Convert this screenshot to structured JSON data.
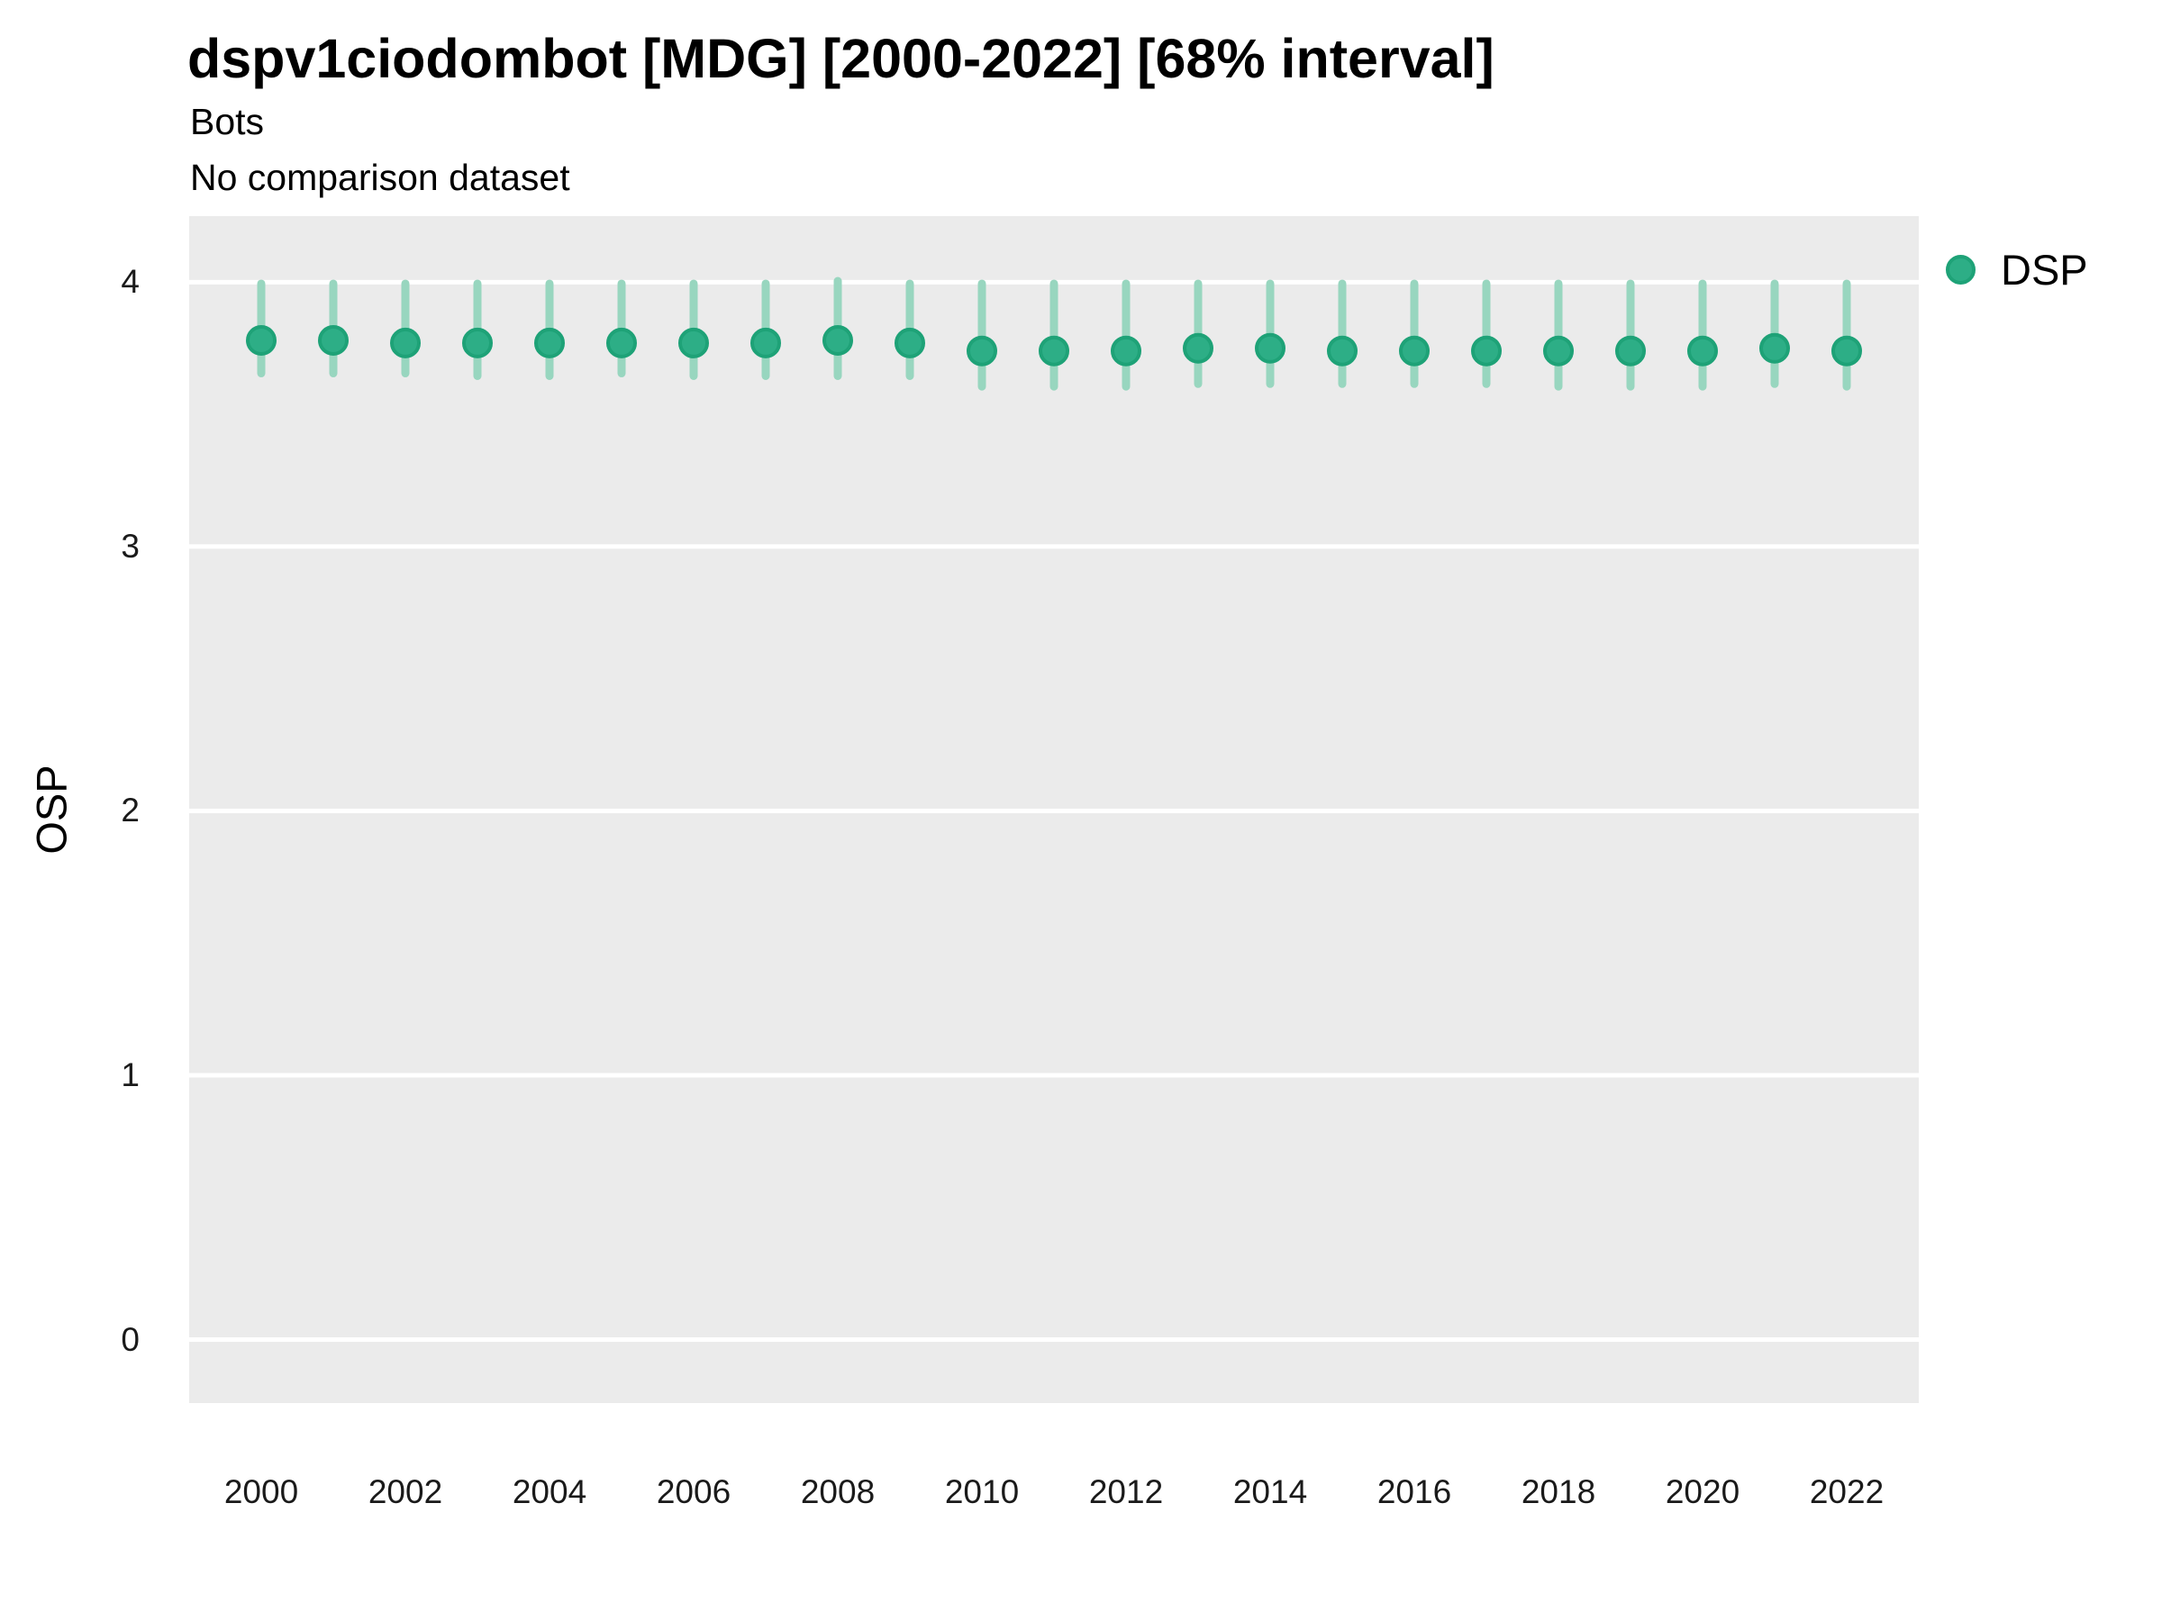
{
  "header": {
    "title": "dspv1ciodombot [MDG] [2000-2022] [68% interval]",
    "subtitle": "Bots",
    "note": "No comparison dataset"
  },
  "legend": {
    "label": "DSP"
  },
  "colors": {
    "point_fill": "#2DAE86",
    "point_stroke": "#1EA277",
    "interval_bar": "#98D6BF",
    "panel_background": "#EBEBEB",
    "gridline": "#FFFFFF",
    "title_text": "#000000",
    "tick_text": "#1A1A1A"
  },
  "chart_data": {
    "type": "scatter",
    "title": "dspv1ciodombot [MDG] [2000-2022] [68% interval]",
    "subtitle": "Bots",
    "note": "No comparison dataset",
    "interval_level": "68%",
    "xlabel": "",
    "ylabel": "OSP",
    "legend": {
      "label": "DSP",
      "position": "right"
    },
    "grid": "major-horizontal-only",
    "x_ticks": [
      2000,
      2002,
      2004,
      2006,
      2008,
      2010,
      2012,
      2014,
      2016,
      2018,
      2020,
      2022
    ],
    "y_ticks": [
      0,
      1,
      2,
      3,
      4
    ],
    "xlim": [
      1999,
      2023
    ],
    "ylim": [
      -0.24,
      4.25
    ],
    "series": [
      {
        "name": "DSP",
        "x": [
          2000,
          2001,
          2002,
          2003,
          2004,
          2005,
          2006,
          2007,
          2008,
          2009,
          2010,
          2011,
          2012,
          2013,
          2014,
          2015,
          2016,
          2017,
          2018,
          2019,
          2020,
          2021,
          2022
        ],
        "values": [
          3.78,
          3.78,
          3.77,
          3.77,
          3.77,
          3.77,
          3.77,
          3.77,
          3.78,
          3.77,
          3.74,
          3.74,
          3.74,
          3.75,
          3.75,
          3.74,
          3.74,
          3.74,
          3.74,
          3.74,
          3.74,
          3.75,
          3.74
        ],
        "lower_68": [
          3.64,
          3.64,
          3.64,
          3.63,
          3.63,
          3.64,
          3.63,
          3.63,
          3.63,
          3.63,
          3.59,
          3.59,
          3.59,
          3.6,
          3.6,
          3.6,
          3.6,
          3.6,
          3.59,
          3.59,
          3.59,
          3.6,
          3.59
        ],
        "upper_68": [
          4.01,
          4.01,
          4.01,
          4.01,
          4.01,
          4.01,
          4.01,
          4.01,
          4.02,
          4.01,
          4.01,
          4.01,
          4.01,
          4.01,
          4.01,
          4.01,
          4.01,
          4.01,
          4.01,
          4.01,
          4.01,
          4.01,
          4.01
        ]
      }
    ]
  }
}
